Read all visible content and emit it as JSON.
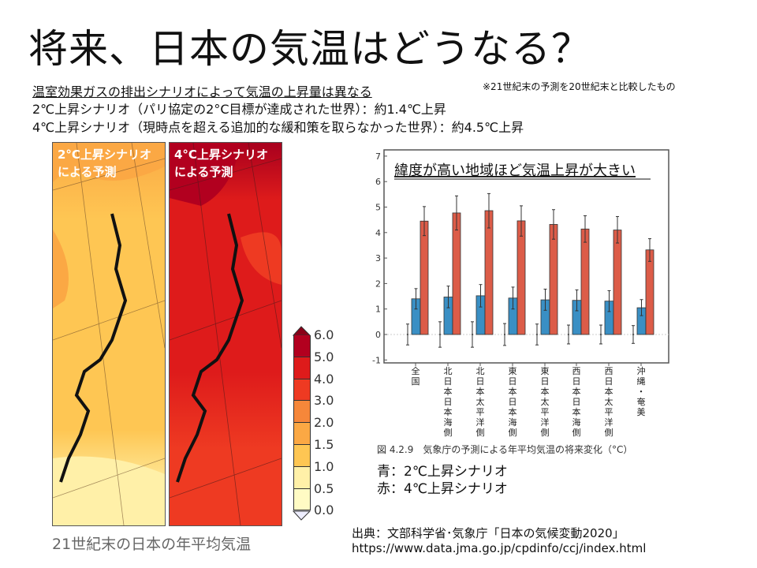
{
  "title": "将来、日本の気温はどうなる？",
  "subtitle": {
    "line1": "温室効果ガスの排出シナリオによって気温の上昇量は異なる",
    "line2": "2℃上昇シナリオ（パリ協定の2°C目標が達成された世界）：約1.4℃上昇",
    "line3": "4℃上昇シナリオ（現時点を超える追加的な緩和策を取らなかった世界）：約4.5℃上昇"
  },
  "note": "※21世紀末の予測を20世紀末と比較したもの",
  "maps": {
    "left_label": "2°C上昇シナリオ\nによる予測",
    "right_label": "4°C上昇シナリオ\nによる予測",
    "caption": "21世紀末の日本の年平均気温",
    "colorbar": {
      "ticks": [
        "6.0",
        "5.0",
        "4.0",
        "3.0",
        "2.0",
        "1.5",
        "1.0",
        "0.5",
        "0.0"
      ],
      "colors": [
        "#b2001f",
        "#de1b1b",
        "#ee3a22",
        "#f6873a",
        "#fba844",
        "#fec653",
        "#fff0a8",
        "#fffbc4"
      ]
    }
  },
  "chart_data": {
    "type": "bar",
    "title": "緯度が高い地域ほど気温上昇が大きい",
    "categories": [
      "全国",
      "北日本日本海側",
      "北日本太平洋側",
      "東日本日本海側",
      "東日本太平洋側",
      "西日本日本海側",
      "西日本太平洋側",
      "沖縄・奄美"
    ],
    "ylim": [
      -1,
      7
    ],
    "yticks": [
      "-1",
      "0",
      "1",
      "2",
      "3",
      "4",
      "5",
      "6",
      "7"
    ],
    "series": [
      {
        "color": "#3a8fc4",
        "values": [
          1.4,
          1.47,
          1.52,
          1.43,
          1.36,
          1.34,
          1.31,
          1.05
        ],
        "err_low": [
          1.0,
          1.05,
          1.08,
          1.0,
          0.95,
          0.93,
          0.9,
          0.74
        ],
        "err_high": [
          1.8,
          1.9,
          1.96,
          1.86,
          1.78,
          1.75,
          1.72,
          1.37
        ]
      },
      {
        "color": "#dc5c48",
        "values": [
          4.45,
          4.77,
          4.86,
          4.46,
          4.32,
          4.14,
          4.1,
          3.32
        ],
        "err_low": [
          3.88,
          4.1,
          4.18,
          3.86,
          3.74,
          3.62,
          3.59,
          2.87
        ],
        "err_high": [
          5.02,
          5.44,
          5.53,
          5.05,
          4.9,
          4.66,
          4.63,
          3.76
        ]
      },
      {
        "color": "#555555",
        "values": [
          0,
          0,
          0,
          0,
          0,
          0,
          0,
          0
        ],
        "err_low": [
          -0.41,
          -0.5,
          -0.5,
          -0.43,
          -0.41,
          -0.37,
          -0.37,
          -0.35
        ],
        "err_high": [
          0.41,
          0.5,
          0.5,
          0.43,
          0.41,
          0.37,
          0.37,
          0.35
        ]
      }
    ],
    "caption": "図 4.2.9　気象庁の予測による年平均気温の将来変化（°C）",
    "legend": [
      "青：2℃上昇シナリオ",
      "赤：4℃上昇シナリオ"
    ]
  },
  "source": {
    "line1": "出典：文部科学省･気象庁「日本の気候変動2020」",
    "line2": "https://www.data.jma.go.jp/cpdinfo/ccj/index.html"
  }
}
